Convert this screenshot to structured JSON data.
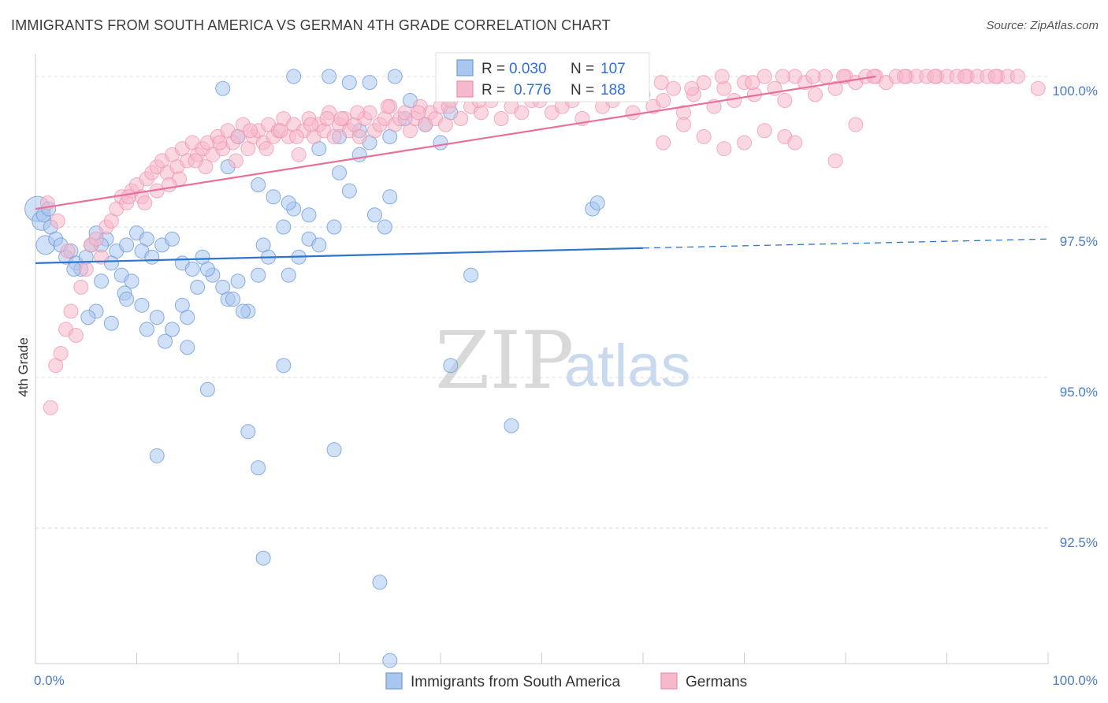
{
  "title": "IMMIGRANTS FROM SOUTH AMERICA VS GERMAN 4TH GRADE CORRELATION CHART",
  "source": "Source: ZipAtlas.com",
  "watermark": {
    "zip": "ZIP",
    "atlas": "atlas"
  },
  "colors": {
    "blue_fill": "#a9c6ee",
    "blue_stroke": "#6f9bd8",
    "blue_line": "#2f74d0",
    "pink_fill": "#f6b8cb",
    "pink_stroke": "#ee8fae",
    "pink_line": "#e8709a",
    "tick_label": "#4a7cc7",
    "grid": "#dddddd"
  },
  "legend": {
    "r_label": "R =",
    "n_label": "N =",
    "rows": [
      {
        "r": "0.030",
        "n": "107"
      },
      {
        "r": "0.776",
        "n": "188"
      }
    ]
  },
  "bottom_legend": [
    {
      "label": "Immigrants from South America"
    },
    {
      "label": "Germans"
    }
  ],
  "chart_data": {
    "type": "scatter",
    "title": "IMMIGRANTS FROM SOUTH AMERICA VS GERMAN 4TH GRADE CORRELATION CHART",
    "xlabel": "",
    "ylabel": "4th Grade",
    "xlim": [
      0,
      100
    ],
    "ylim": [
      90.9,
      100.3
    ],
    "x_tick_labels": [
      "0.0%",
      "100.0%"
    ],
    "y_ticks": [
      92.5,
      95.0,
      97.5,
      100.0
    ],
    "y_tick_labels": [
      "92.5%",
      "95.0%",
      "97.5%",
      "100.0%"
    ],
    "grid": true,
    "series": [
      {
        "name": "Immigrants from South America",
        "R": 0.03,
        "N": 107,
        "trend": {
          "x": [
            0,
            60
          ],
          "y": [
            96.9,
            97.15
          ],
          "dashed_to": [
            100,
            97.3
          ]
        },
        "points": [
          [
            0.2,
            97.8
          ],
          [
            0.6,
            97.6
          ],
          [
            1.0,
            97.2
          ],
          [
            1.5,
            97.5
          ],
          [
            2.0,
            97.3
          ],
          [
            2.5,
            97.2
          ],
          [
            3.0,
            97.0
          ],
          [
            3.5,
            97.1
          ],
          [
            0.8,
            97.7
          ],
          [
            1.3,
            97.8
          ],
          [
            4.0,
            96.9
          ],
          [
            4.5,
            96.8
          ],
          [
            5.0,
            97.0
          ],
          [
            5.5,
            97.2
          ],
          [
            6.0,
            97.4
          ],
          [
            7.0,
            97.3
          ],
          [
            8.0,
            97.1
          ],
          [
            9.0,
            97.2
          ],
          [
            10.0,
            97.4
          ],
          [
            11.0,
            97.3
          ],
          [
            3.8,
            96.8
          ],
          [
            6.5,
            97.2
          ],
          [
            7.5,
            96.9
          ],
          [
            8.5,
            96.7
          ],
          [
            9.5,
            96.6
          ],
          [
            10.5,
            97.1
          ],
          [
            11.5,
            97.0
          ],
          [
            12.5,
            97.2
          ],
          [
            13.5,
            97.3
          ],
          [
            14.5,
            96.9
          ],
          [
            15.5,
            96.8
          ],
          [
            16.5,
            97.0
          ],
          [
            17.5,
            96.7
          ],
          [
            18.5,
            96.5
          ],
          [
            6.5,
            96.6
          ],
          [
            8.8,
            96.4
          ],
          [
            10.5,
            96.2
          ],
          [
            12.0,
            96.0
          ],
          [
            13.5,
            95.8
          ],
          [
            15.0,
            95.5
          ],
          [
            6.0,
            96.1
          ],
          [
            5.2,
            96.0
          ],
          [
            7.5,
            95.9
          ],
          [
            11.0,
            95.8
          ],
          [
            12.8,
            95.6
          ],
          [
            14.5,
            96.2
          ],
          [
            16.0,
            96.5
          ],
          [
            17.0,
            96.8
          ],
          [
            19.0,
            96.3
          ],
          [
            20.0,
            96.6
          ],
          [
            21.0,
            96.1
          ],
          [
            22.5,
            97.2
          ],
          [
            23.0,
            97.0
          ],
          [
            24.5,
            97.5
          ],
          [
            25.5,
            97.8
          ],
          [
            26.0,
            97.0
          ],
          [
            27.0,
            97.3
          ],
          [
            28.0,
            97.2
          ],
          [
            29.5,
            97.5
          ],
          [
            30.0,
            98.4
          ],
          [
            31.0,
            98.1
          ],
          [
            32.0,
            98.7
          ],
          [
            33.5,
            97.7
          ],
          [
            34.5,
            97.5
          ],
          [
            35.0,
            98.0
          ],
          [
            19.0,
            98.5
          ],
          [
            20.0,
            99.0
          ],
          [
            22.0,
            98.2
          ],
          [
            23.5,
            98.0
          ],
          [
            25.0,
            97.9
          ],
          [
            27.0,
            97.7
          ],
          [
            28.0,
            98.8
          ],
          [
            30.0,
            99.0
          ],
          [
            32.0,
            99.1
          ],
          [
            33.0,
            98.9
          ],
          [
            35.0,
            99.0
          ],
          [
            36.5,
            99.3
          ],
          [
            38.5,
            99.2
          ],
          [
            40.0,
            98.9
          ],
          [
            41.0,
            99.4
          ],
          [
            18.5,
            99.8
          ],
          [
            25.5,
            100.0
          ],
          [
            29.0,
            100.0
          ],
          [
            31.0,
            99.9
          ],
          [
            33.0,
            99.9
          ],
          [
            35.5,
            100.0
          ],
          [
            37.0,
            99.6
          ],
          [
            15.0,
            96.0
          ],
          [
            17.0,
            94.8
          ],
          [
            19.5,
            96.3
          ],
          [
            21.0,
            94.1
          ],
          [
            22.0,
            93.5
          ],
          [
            22.5,
            92.0
          ],
          [
            24.5,
            95.2
          ],
          [
            29.5,
            93.8
          ],
          [
            34.0,
            91.6
          ],
          [
            35.0,
            90.3
          ],
          [
            41.0,
            95.2
          ],
          [
            43.0,
            96.7
          ],
          [
            47.0,
            94.2
          ],
          [
            55.0,
            97.8
          ],
          [
            55.5,
            97.9
          ],
          [
            12.0,
            93.7
          ],
          [
            20.5,
            96.1
          ],
          [
            22.0,
            96.7
          ],
          [
            25.0,
            96.7
          ],
          [
            9.0,
            96.3
          ]
        ]
      },
      {
        "name": "Germans",
        "R": 0.776,
        "N": 188,
        "trend": {
          "x": [
            0,
            83
          ],
          "y": [
            97.8,
            100.0
          ]
        },
        "points": [
          [
            1.5,
            94.5
          ],
          [
            2.0,
            95.2
          ],
          [
            2.5,
            95.4
          ],
          [
            3.0,
            95.8
          ],
          [
            3.5,
            96.1
          ],
          [
            4.0,
            95.7
          ],
          [
            4.5,
            96.5
          ],
          [
            5.0,
            96.8
          ],
          [
            5.5,
            97.2
          ],
          [
            6.0,
            97.3
          ],
          [
            6.5,
            97.0
          ],
          [
            7.0,
            97.5
          ],
          [
            7.5,
            97.6
          ],
          [
            8.0,
            97.8
          ],
          [
            8.5,
            98.0
          ],
          [
            9.0,
            97.9
          ],
          [
            9.5,
            98.1
          ],
          [
            10.0,
            98.2
          ],
          [
            10.5,
            98.0
          ],
          [
            11.0,
            98.3
          ],
          [
            11.5,
            98.4
          ],
          [
            12.0,
            98.5
          ],
          [
            12.5,
            98.6
          ],
          [
            13.0,
            98.4
          ],
          [
            13.5,
            98.7
          ],
          [
            14.0,
            98.5
          ],
          [
            14.5,
            98.8
          ],
          [
            15.0,
            98.6
          ],
          [
            15.5,
            98.9
          ],
          [
            16.0,
            98.7
          ],
          [
            16.5,
            98.8
          ],
          [
            17.0,
            98.9
          ],
          [
            17.5,
            98.7
          ],
          [
            18.0,
            99.0
          ],
          [
            18.5,
            98.8
          ],
          [
            19.0,
            99.1
          ],
          [
            19.5,
            98.9
          ],
          [
            20.0,
            99.0
          ],
          [
            20.5,
            99.2
          ],
          [
            21.0,
            98.8
          ],
          [
            21.5,
            99.0
          ],
          [
            22.0,
            99.1
          ],
          [
            22.5,
            98.9
          ],
          [
            23.0,
            99.2
          ],
          [
            23.5,
            99.0
          ],
          [
            24.0,
            99.1
          ],
          [
            24.5,
            99.3
          ],
          [
            25.0,
            99.0
          ],
          [
            25.5,
            99.2
          ],
          [
            26.0,
            98.7
          ],
          [
            26.5,
            99.1
          ],
          [
            27.0,
            99.3
          ],
          [
            27.5,
            99.0
          ],
          [
            28.0,
            99.2
          ],
          [
            28.5,
            99.1
          ],
          [
            29.0,
            99.4
          ],
          [
            29.5,
            99.0
          ],
          [
            30.0,
            99.2
          ],
          [
            30.5,
            99.3
          ],
          [
            31.0,
            99.1
          ],
          [
            31.5,
            99.2
          ],
          [
            32.0,
            99.0
          ],
          [
            32.5,
            99.3
          ],
          [
            33.0,
            99.4
          ],
          [
            33.5,
            99.1
          ],
          [
            34.0,
            99.2
          ],
          [
            34.5,
            99.3
          ],
          [
            35.0,
            99.5
          ],
          [
            35.5,
            99.2
          ],
          [
            36.0,
            99.3
          ],
          [
            36.5,
            99.4
          ],
          [
            37.0,
            99.1
          ],
          [
            37.5,
            99.3
          ],
          [
            38.0,
            99.5
          ],
          [
            38.5,
            99.2
          ],
          [
            39.0,
            99.4
          ],
          [
            39.5,
            99.3
          ],
          [
            40.0,
            99.5
          ],
          [
            40.5,
            99.2
          ],
          [
            41.0,
            99.6
          ],
          [
            42.0,
            99.3
          ],
          [
            43.0,
            99.5
          ],
          [
            44.0,
            99.4
          ],
          [
            45.0,
            99.6
          ],
          [
            46.0,
            99.3
          ],
          [
            47.0,
            99.5
          ],
          [
            48.0,
            99.4
          ],
          [
            49.0,
            99.6
          ],
          [
            50.0,
            99.7
          ],
          [
            51.0,
            99.4
          ],
          [
            52.0,
            99.5
          ],
          [
            53.0,
            99.6
          ],
          [
            54.0,
            99.3
          ],
          [
            55.0,
            99.7
          ],
          [
            56.0,
            99.5
          ],
          [
            57.0,
            99.6
          ],
          [
            58.0,
            99.8
          ],
          [
            59.0,
            99.4
          ],
          [
            60.0,
            99.7
          ],
          [
            61.0,
            99.5
          ],
          [
            62.0,
            99.6
          ],
          [
            63.0,
            99.8
          ],
          [
            64.0,
            99.4
          ],
          [
            65.0,
            99.7
          ],
          [
            66.0,
            99.9
          ],
          [
            67.0,
            99.5
          ],
          [
            68.0,
            99.8
          ],
          [
            69.0,
            99.6
          ],
          [
            70.0,
            99.9
          ],
          [
            71.0,
            99.7
          ],
          [
            72.0,
            100.0
          ],
          [
            73.0,
            99.8
          ],
          [
            74.0,
            99.6
          ],
          [
            75.0,
            100.0
          ],
          [
            76.0,
            99.9
          ],
          [
            77.0,
            99.7
          ],
          [
            78.0,
            100.0
          ],
          [
            79.0,
            99.8
          ],
          [
            80.0,
            100.0
          ],
          [
            81.0,
            99.9
          ],
          [
            82.0,
            100.0
          ],
          [
            83.0,
            100.0
          ],
          [
            84.0,
            99.9
          ],
          [
            85.0,
            100.0
          ],
          [
            86.0,
            100.0
          ],
          [
            87.0,
            100.0
          ],
          [
            88.0,
            100.0
          ],
          [
            89.0,
            100.0
          ],
          [
            90.0,
            100.0
          ],
          [
            91.0,
            100.0
          ],
          [
            92.0,
            100.0
          ],
          [
            93.0,
            100.0
          ],
          [
            94.0,
            100.0
          ],
          [
            95.0,
            100.0
          ],
          [
            96.0,
            100.0
          ],
          [
            97.0,
            100.0
          ],
          [
            62.0,
            98.9
          ],
          [
            64.0,
            99.2
          ],
          [
            66.0,
            99.0
          ],
          [
            68.0,
            98.8
          ],
          [
            70.0,
            98.9
          ],
          [
            72.0,
            99.1
          ],
          [
            74.0,
            99.0
          ],
          [
            75.0,
            98.9
          ],
          [
            79.0,
            98.6
          ],
          [
            81.0,
            99.2
          ],
          [
            99.0,
            99.8
          ],
          [
            1.2,
            97.9
          ],
          [
            2.2,
            97.6
          ],
          [
            3.2,
            97.1
          ],
          [
            12.0,
            98.1
          ],
          [
            14.2,
            98.3
          ],
          [
            16.8,
            98.5
          ],
          [
            19.8,
            98.6
          ],
          [
            22.8,
            98.8
          ],
          [
            25.8,
            99.0
          ],
          [
            28.8,
            99.3
          ],
          [
            31.8,
            99.4
          ],
          [
            34.8,
            99.5
          ],
          [
            37.8,
            99.4
          ],
          [
            40.8,
            99.5
          ],
          [
            43.8,
            99.6
          ],
          [
            46.8,
            99.7
          ],
          [
            49.8,
            99.6
          ],
          [
            52.8,
            99.8
          ],
          [
            55.8,
            99.7
          ],
          [
            58.8,
            99.8
          ],
          [
            61.8,
            99.9
          ],
          [
            64.8,
            99.8
          ],
          [
            67.8,
            100.0
          ],
          [
            70.8,
            99.9
          ],
          [
            73.8,
            100.0
          ],
          [
            76.8,
            100.0
          ],
          [
            79.8,
            100.0
          ],
          [
            82.8,
            100.0
          ],
          [
            85.8,
            100.0
          ],
          [
            88.8,
            100.0
          ],
          [
            91.8,
            100.0
          ],
          [
            94.8,
            100.0
          ],
          [
            9.2,
            98.0
          ],
          [
            10.8,
            97.9
          ],
          [
            13.2,
            98.2
          ],
          [
            15.8,
            98.6
          ],
          [
            18.2,
            98.9
          ],
          [
            21.2,
            99.1
          ],
          [
            24.2,
            99.1
          ],
          [
            27.2,
            99.2
          ],
          [
            30.2,
            99.3
          ]
        ]
      }
    ]
  }
}
